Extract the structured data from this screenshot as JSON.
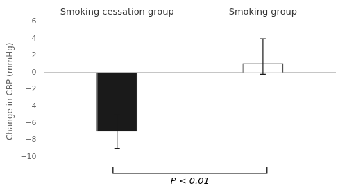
{
  "chart_data": {
    "type": "bar",
    "categories": [
      "Smoking cessation group",
      "Smoking group"
    ],
    "values": [
      -7.0,
      1.1
    ],
    "colors": [
      "#1a1a1a",
      "#ffffff"
    ],
    "error_lower": [
      2.0,
      1.3
    ],
    "error_upper": [
      2.0,
      2.9
    ],
    "ylabel": "Change in CBP (mmHg)",
    "ylim": [
      -10.5,
      6
    ],
    "yticks": [
      {
        "value": -10,
        "label": "−10"
      },
      {
        "value": -8,
        "label": "−8"
      },
      {
        "value": -6,
        "label": "−6"
      },
      {
        "value": -4,
        "label": "−4"
      },
      {
        "value": -2,
        "label": "−2"
      },
      0,
      2,
      4,
      6
    ],
    "hline": 0,
    "annotation": "P < 0.01",
    "grid": false
  }
}
